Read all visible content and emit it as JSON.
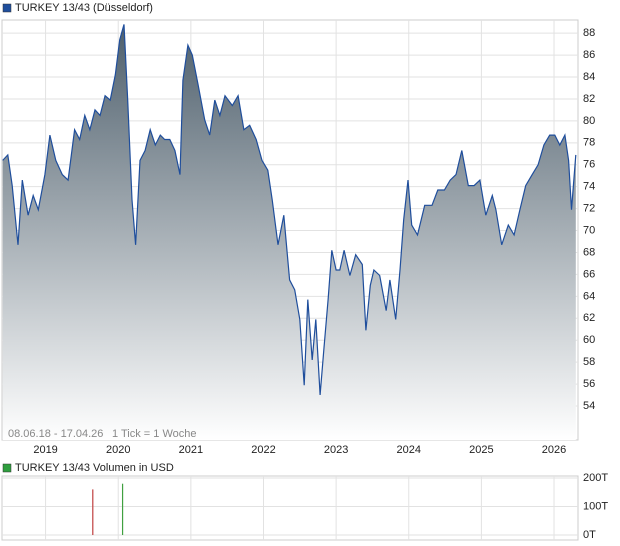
{
  "chart_data": [
    {
      "type": "area",
      "series": [
        {
          "name": "TURKEY 13/43 (Düsseldorf)",
          "color": "#1f4e9c",
          "values": [
            76.4,
            76.9,
            74.1,
            68.7,
            74.6,
            71.4,
            73.2,
            71.9,
            75.1,
            78.7,
            76.4,
            75.1,
            74.6,
            79.2,
            78.3,
            80.5,
            79.2,
            81.0,
            80.5,
            82.3,
            81.9,
            84.2,
            87.4,
            88.8,
            81.9,
            72.8,
            68.7,
            76.4,
            77.3,
            79.2,
            77.8,
            78.7,
            78.3,
            78.3,
            77.3,
            75.1,
            83.7,
            86.9,
            86.0,
            83.3,
            80.1,
            78.7,
            81.9,
            80.5,
            82.3,
            81.4,
            82.3,
            79.2,
            79.6,
            78.3,
            76.4,
            75.5,
            72.8,
            68.7,
            71.4,
            65.5,
            64.6,
            61.9,
            55.9,
            63.7,
            58.2,
            61.9,
            55.0,
            59.1,
            63.7,
            68.2,
            66.4,
            66.4,
            68.2,
            65.9,
            67.8,
            66.9,
            60.9,
            65.0,
            66.4,
            65.9,
            62.7,
            65.5,
            61.9,
            66.4,
            71.0,
            74.6,
            70.5,
            69.6,
            72.3,
            72.3,
            73.7,
            73.7,
            74.6,
            75.1,
            77.3,
            74.1,
            74.1,
            74.6,
            71.4,
            73.2,
            71.9,
            68.7,
            70.5,
            69.6,
            71.9,
            74.1,
            75.1,
            76.0,
            77.8,
            78.7,
            78.7,
            77.8,
            78.7,
            76.4,
            71.9,
            76.9
          ]
        }
      ],
      "x": [
        2018.41,
        2018.48,
        2018.54,
        2018.62,
        2018.68,
        2018.76,
        2018.83,
        2018.9,
        2018.99,
        2019.06,
        2019.14,
        2019.23,
        2019.31,
        2019.4,
        2019.47,
        2019.54,
        2019.61,
        2019.68,
        2019.75,
        2019.82,
        2019.89,
        2019.96,
        2020.02,
        2020.08,
        2020.13,
        2020.19,
        2020.24,
        2020.3,
        2020.37,
        2020.44,
        2020.51,
        2020.58,
        2020.64,
        2020.71,
        2020.78,
        2020.85,
        2020.89,
        2020.96,
        2021.02,
        2021.1,
        2021.19,
        2021.26,
        2021.33,
        2021.4,
        2021.47,
        2021.57,
        2021.65,
        2021.73,
        2021.81,
        2021.9,
        2021.98,
        2022.06,
        2022.12,
        2022.2,
        2022.28,
        2022.36,
        2022.43,
        2022.5,
        2022.56,
        2022.61,
        2022.67,
        2022.72,
        2022.78,
        2022.83,
        2022.89,
        2022.94,
        2023.0,
        2023.05,
        2023.11,
        2023.19,
        2023.27,
        2023.36,
        2023.41,
        2023.47,
        2023.52,
        2023.6,
        2023.69,
        2023.74,
        2023.82,
        2023.88,
        2023.93,
        2023.99,
        2024.04,
        2024.12,
        2024.22,
        2024.32,
        2024.4,
        2024.49,
        2024.57,
        2024.65,
        2024.73,
        2024.82,
        2024.9,
        2024.98,
        2025.06,
        2025.15,
        2025.2,
        2025.28,
        2025.37,
        2025.45,
        2025.53,
        2025.61,
        2025.7,
        2025.78,
        2025.86,
        2025.94,
        2026.01,
        2026.08,
        2026.15,
        2026.2,
        2026.24,
        2026.3
      ],
      "xlim": [
        2018.4,
        2026.33
      ],
      "xticks": [
        2019,
        2020,
        2021,
        2022,
        2023,
        2024,
        2025,
        2026
      ],
      "ylim": [
        50.9,
        89.2
      ],
      "yticks": [
        54,
        56,
        58,
        60,
        62,
        64,
        66,
        68,
        70,
        72,
        74,
        76,
        78,
        80,
        82,
        84,
        86,
        88
      ],
      "grid": true,
      "range_label": "08.06.18 - 17.04.26",
      "tick_note": "1 Tick = 1 Woche"
    },
    {
      "type": "bar",
      "series": [
        {
          "name": "TURKEY 13/43 Volumen in USD",
          "color": "#2e9e3e",
          "values": [
            160000,
            180000
          ]
        }
      ],
      "x": [
        2019.65,
        2020.06
      ],
      "colors": [
        "#c04040",
        "#40a040"
      ],
      "xlim": [
        2018.4,
        2026.33
      ],
      "xticks": [
        2019,
        2020,
        2021,
        2022,
        2023,
        2024,
        2025,
        2026
      ],
      "ylim": [
        -17500,
        207000
      ],
      "yticks": [
        {
          "value": 0,
          "label": "0T"
        },
        {
          "value": 100000,
          "label": "100T"
        },
        {
          "value": 200000,
          "label": "200T"
        }
      ],
      "grid": true
    }
  ]
}
